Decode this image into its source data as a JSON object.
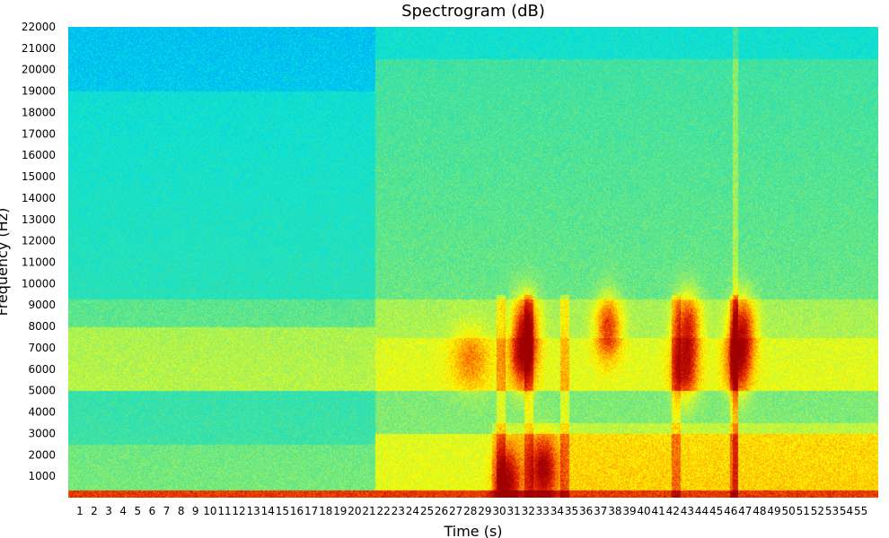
{
  "chart_data": {
    "type": "heatmap",
    "title": "Spectrogram (dB)",
    "xlabel": "Time (s)",
    "ylabel": "Frequency (Hz)",
    "xlim": [
      0.2,
      56.2
    ],
    "ylim": [
      0,
      22000
    ],
    "x_ticks": [
      "1",
      "2",
      "3",
      "4",
      "5",
      "6",
      "7",
      "8",
      "9",
      "10",
      "11",
      "12",
      "13",
      "14",
      "15",
      "16",
      "17",
      "18",
      "19",
      "20",
      "21",
      "22",
      "23",
      "24",
      "25",
      "26",
      "27",
      "28",
      "29",
      "30",
      "31",
      "32",
      "33",
      "34",
      "35",
      "36",
      "37",
      "38",
      "39",
      "40",
      "41",
      "42",
      "43",
      "44",
      "45",
      "46",
      "47",
      "48",
      "49",
      "50",
      "51",
      "52",
      "53",
      "54",
      "55"
    ],
    "y_ticks": [
      "1000",
      "2000",
      "3000",
      "4000",
      "5000",
      "6000",
      "7000",
      "8000",
      "9000",
      "10000",
      "11000",
      "12000",
      "13000",
      "14000",
      "15000",
      "16000",
      "17000",
      "18000",
      "19000",
      "20000",
      "21000",
      "22000"
    ],
    "colormap": [
      "#0000a0",
      "#00a0ff",
      "#00e0e0",
      "#40e0a0",
      "#a0f060",
      "#ffff00",
      "#ff9000",
      "#e02000",
      "#a00000"
    ],
    "segments": [
      {
        "t_start": 0.2,
        "t_end": 21.4,
        "note": "quiet section: cyan-green background, yellow band around 5000-8000 Hz"
      },
      {
        "t_start": 21.4,
        "t_end": 56.2,
        "note": "louder section: green-yellow background, orange/red bursts"
      }
    ],
    "hotspots": [
      {
        "t": 31.6,
        "f": 6500,
        "level": "high"
      },
      {
        "t": 31.8,
        "f": 8200,
        "level": "high"
      },
      {
        "t": 37.5,
        "f": 8000,
        "level": "high"
      },
      {
        "t": 42.8,
        "f": 6000,
        "level": "high"
      },
      {
        "t": 43.0,
        "f": 8200,
        "level": "high"
      },
      {
        "t": 46.5,
        "f": 6300,
        "level": "high"
      },
      {
        "t": 46.8,
        "f": 8100,
        "level": "high"
      },
      {
        "t": 33.0,
        "f": 1300,
        "level": "high"
      },
      {
        "t": 30.5,
        "f": 800,
        "level": "high"
      },
      {
        "t": 28.0,
        "f": 6500,
        "level": "medium"
      }
    ],
    "grid": false,
    "legend": "none"
  }
}
